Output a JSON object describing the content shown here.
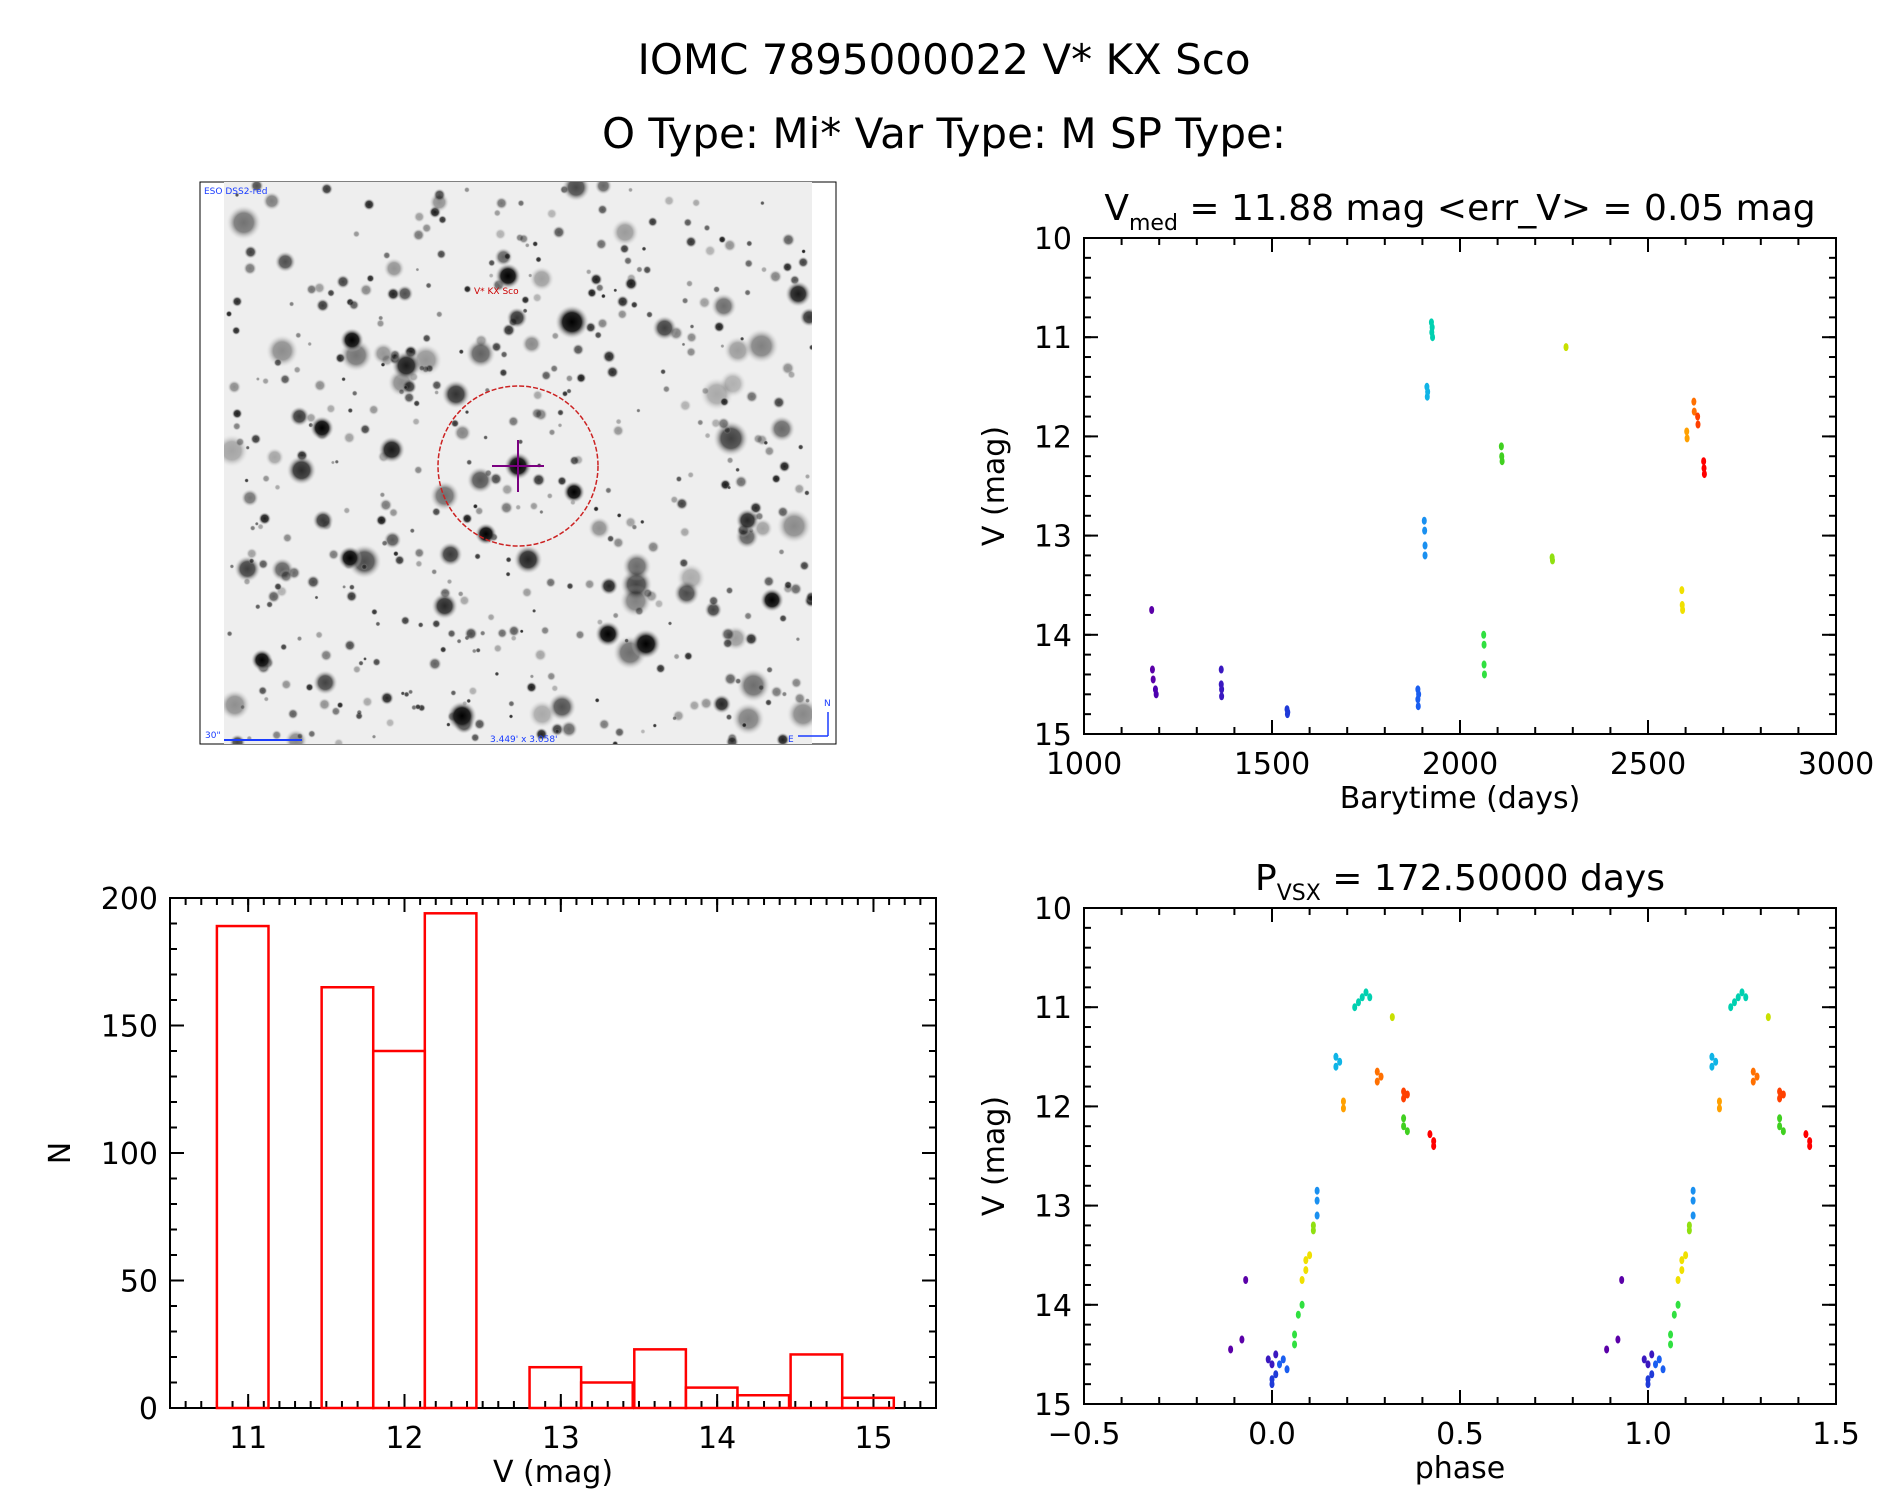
{
  "header": {
    "title_line1": "IOMC 7895000022   V* KX Sco",
    "title_line2": "O Type: Mi*  Var Type: M  SP Type:"
  },
  "sky_image": {
    "survey_label": "ESO DSS2-red",
    "target_label": "V* KX Sco",
    "scale_label": "30\"",
    "fov_label": "3.449' x 3.058'",
    "north_label": "N",
    "east_label": "E"
  },
  "colors": {
    "histogram": "#ff0000",
    "marker_circle": "#cc2222",
    "crosshair": "#7a0080"
  },
  "chart_data": [
    {
      "type": "scatter",
      "id": "light_curve",
      "title": "V_med = 11.88 mag <err_V> = 0.05 mag",
      "title_parts": {
        "prefix": "V",
        "sub": "med",
        "rest": " = 11.88 mag <err_V> = 0.05 mag"
      },
      "xlabel": "Barytime (days)",
      "ylabel": "V (mag)",
      "xlim": [
        1000,
        3000
      ],
      "ylim": [
        15,
        10
      ],
      "xticks": [
        1000,
        1500,
        2000,
        2500,
        3000
      ],
      "yticks": [
        10,
        11,
        12,
        13,
        14,
        15
      ],
      "color_scale": "rainbow by barytime",
      "points": [
        {
          "x": 1180,
          "y": 13.75,
          "c": "#5a00a8"
        },
        {
          "x": 1182,
          "y": 14.35,
          "c": "#5a00a8"
        },
        {
          "x": 1184,
          "y": 14.45,
          "c": "#5a00a8"
        },
        {
          "x": 1190,
          "y": 14.55,
          "c": "#4d00b0"
        },
        {
          "x": 1192,
          "y": 14.6,
          "c": "#4d00b0"
        },
        {
          "x": 1365,
          "y": 14.35,
          "c": "#3a18c0"
        },
        {
          "x": 1365,
          "y": 14.5,
          "c": "#3a18c0"
        },
        {
          "x": 1366,
          "y": 14.55,
          "c": "#3a18c0"
        },
        {
          "x": 1366,
          "y": 14.62,
          "c": "#3a18c0"
        },
        {
          "x": 1540,
          "y": 14.75,
          "c": "#1f3ad8"
        },
        {
          "x": 1541,
          "y": 14.8,
          "c": "#1f3ad8"
        },
        {
          "x": 1542,
          "y": 14.78,
          "c": "#1f3ad8"
        },
        {
          "x": 1888,
          "y": 14.55,
          "c": "#1a5ef0"
        },
        {
          "x": 1888,
          "y": 14.65,
          "c": "#1a5ef0"
        },
        {
          "x": 1889,
          "y": 14.72,
          "c": "#1a5ef0"
        },
        {
          "x": 1890,
          "y": 14.6,
          "c": "#1a5ef0"
        },
        {
          "x": 1905,
          "y": 12.85,
          "c": "#1a90f0"
        },
        {
          "x": 1906,
          "y": 12.95,
          "c": "#1a90f0"
        },
        {
          "x": 1907,
          "y": 13.1,
          "c": "#1a90f0"
        },
        {
          "x": 1907,
          "y": 13.2,
          "c": "#1a90f0"
        },
        {
          "x": 1912,
          "y": 11.5,
          "c": "#10b4e6"
        },
        {
          "x": 1913,
          "y": 11.6,
          "c": "#10b4e6"
        },
        {
          "x": 1914,
          "y": 11.55,
          "c": "#10b4e6"
        },
        {
          "x": 1924,
          "y": 10.85,
          "c": "#00d0b0"
        },
        {
          "x": 1925,
          "y": 10.95,
          "c": "#00d0b0"
        },
        {
          "x": 1926,
          "y": 10.9,
          "c": "#00d0b0"
        },
        {
          "x": 1927,
          "y": 11.0,
          "c": "#00d0b0"
        },
        {
          "x": 2063,
          "y": 14.0,
          "c": "#30e040"
        },
        {
          "x": 2064,
          "y": 14.1,
          "c": "#30e040"
        },
        {
          "x": 2064,
          "y": 14.3,
          "c": "#30e040"
        },
        {
          "x": 2065,
          "y": 14.4,
          "c": "#30e040"
        },
        {
          "x": 2110,
          "y": 12.1,
          "c": "#40d020"
        },
        {
          "x": 2111,
          "y": 12.2,
          "c": "#40d020"
        },
        {
          "x": 2112,
          "y": 12.25,
          "c": "#40d020"
        },
        {
          "x": 2245,
          "y": 13.22,
          "c": "#90e010"
        },
        {
          "x": 2246,
          "y": 13.25,
          "c": "#90e010"
        },
        {
          "x": 2282,
          "y": 11.1,
          "c": "#c8e000"
        },
        {
          "x": 2590,
          "y": 13.55,
          "c": "#f0e000"
        },
        {
          "x": 2591,
          "y": 13.7,
          "c": "#f0e000"
        },
        {
          "x": 2592,
          "y": 13.75,
          "c": "#f0e000"
        },
        {
          "x": 2603,
          "y": 11.95,
          "c": "#ffa000"
        },
        {
          "x": 2604,
          "y": 12.02,
          "c": "#ffa000"
        },
        {
          "x": 2622,
          "y": 11.65,
          "c": "#ff7000"
        },
        {
          "x": 2623,
          "y": 11.75,
          "c": "#ff7000"
        },
        {
          "x": 2632,
          "y": 11.8,
          "c": "#ff4000"
        },
        {
          "x": 2633,
          "y": 11.88,
          "c": "#ff4000"
        },
        {
          "x": 2648,
          "y": 12.25,
          "c": "#ff0000"
        },
        {
          "x": 2649,
          "y": 12.32,
          "c": "#ff0000"
        },
        {
          "x": 2650,
          "y": 12.38,
          "c": "#ff0000"
        }
      ]
    },
    {
      "type": "bar",
      "id": "histogram",
      "title": "",
      "xlabel": "V (mag)",
      "ylabel": "N",
      "xlim": [
        10.5,
        15.4
      ],
      "ylim": [
        0,
        200
      ],
      "xticks": [
        11,
        12,
        13,
        14,
        15
      ],
      "yticks": [
        0,
        50,
        100,
        150,
        200
      ],
      "bin_width": 0.33,
      "bins": [
        {
          "left": 10.8,
          "value": 189
        },
        {
          "left": 11.13,
          "value": 0
        },
        {
          "left": 11.47,
          "value": 165
        },
        {
          "left": 11.8,
          "value": 140
        },
        {
          "left": 12.13,
          "value": 194
        },
        {
          "left": 12.47,
          "value": 0
        },
        {
          "left": 12.8,
          "value": 16
        },
        {
          "left": 13.13,
          "value": 10
        },
        {
          "left": 13.47,
          "value": 23
        },
        {
          "left": 13.8,
          "value": 8
        },
        {
          "left": 14.13,
          "value": 5
        },
        {
          "left": 14.47,
          "value": 21
        },
        {
          "left": 14.8,
          "value": 4
        }
      ]
    },
    {
      "type": "scatter",
      "id": "phase_curve",
      "title": "P_vsx = 172.50000 days",
      "title_parts": {
        "prefix": "P",
        "sub": "VSX",
        "rest": " = 172.50000 days"
      },
      "xlabel": "phase",
      "ylabel": "V (mag)",
      "xlim": [
        -0.5,
        1.5
      ],
      "ylim": [
        15,
        10
      ],
      "xticks": [
        -0.5,
        0.0,
        0.5,
        1.0,
        1.5
      ],
      "xtick_labels": [
        "−0.5",
        "0.0",
        "0.5",
        "1.0",
        "1.5"
      ],
      "yticks": [
        10,
        11,
        12,
        13,
        14,
        15
      ],
      "phase_repeat": 1.0,
      "points": [
        {
          "x": -0.11,
          "y": 14.45,
          "c": "#5a00a8"
        },
        {
          "x": -0.08,
          "y": 14.35,
          "c": "#5a00a8"
        },
        {
          "x": -0.07,
          "y": 13.75,
          "c": "#5a00a8"
        },
        {
          "x": -0.01,
          "y": 14.55,
          "c": "#3a18c0"
        },
        {
          "x": 0.0,
          "y": 14.6,
          "c": "#3a18c0"
        },
        {
          "x": 0.01,
          "y": 14.5,
          "c": "#3a18c0"
        },
        {
          "x": 0.0,
          "y": 14.75,
          "c": "#1f3ad8"
        },
        {
          "x": 0.0,
          "y": 14.8,
          "c": "#1f3ad8"
        },
        {
          "x": 0.01,
          "y": 14.7,
          "c": "#1f3ad8"
        },
        {
          "x": 0.02,
          "y": 14.6,
          "c": "#1a5ef0"
        },
        {
          "x": 0.03,
          "y": 14.55,
          "c": "#1a5ef0"
        },
        {
          "x": 0.04,
          "y": 14.65,
          "c": "#1a5ef0"
        },
        {
          "x": 0.06,
          "y": 14.4,
          "c": "#30e040"
        },
        {
          "x": 0.06,
          "y": 14.3,
          "c": "#30e040"
        },
        {
          "x": 0.07,
          "y": 14.1,
          "c": "#30e040"
        },
        {
          "x": 0.08,
          "y": 14.0,
          "c": "#30e040"
        },
        {
          "x": 0.08,
          "y": 13.75,
          "c": "#f0e000"
        },
        {
          "x": 0.09,
          "y": 13.65,
          "c": "#f0e000"
        },
        {
          "x": 0.09,
          "y": 13.55,
          "c": "#f0e000"
        },
        {
          "x": 0.1,
          "y": 13.5,
          "c": "#f0e000"
        },
        {
          "x": 0.11,
          "y": 13.25,
          "c": "#90e010"
        },
        {
          "x": 0.11,
          "y": 13.2,
          "c": "#90e010"
        },
        {
          "x": 0.12,
          "y": 13.1,
          "c": "#1a90f0"
        },
        {
          "x": 0.12,
          "y": 12.95,
          "c": "#1a90f0"
        },
        {
          "x": 0.12,
          "y": 12.85,
          "c": "#1a90f0"
        },
        {
          "x": 0.17,
          "y": 11.5,
          "c": "#10b4e6"
        },
        {
          "x": 0.17,
          "y": 11.6,
          "c": "#10b4e6"
        },
        {
          "x": 0.18,
          "y": 11.55,
          "c": "#10b4e6"
        },
        {
          "x": 0.19,
          "y": 11.95,
          "c": "#ffa000"
        },
        {
          "x": 0.19,
          "y": 12.02,
          "c": "#ffa000"
        },
        {
          "x": 0.22,
          "y": 11.0,
          "c": "#00d0b0"
        },
        {
          "x": 0.23,
          "y": 10.95,
          "c": "#00d0b0"
        },
        {
          "x": 0.24,
          "y": 10.9,
          "c": "#00d0b0"
        },
        {
          "x": 0.25,
          "y": 10.85,
          "c": "#00d0b0"
        },
        {
          "x": 0.26,
          "y": 10.9,
          "c": "#00d0b0"
        },
        {
          "x": 0.28,
          "y": 11.65,
          "c": "#ff7000"
        },
        {
          "x": 0.28,
          "y": 11.75,
          "c": "#ff7000"
        },
        {
          "x": 0.29,
          "y": 11.7,
          "c": "#ff7000"
        },
        {
          "x": 0.32,
          "y": 11.1,
          "c": "#c8e000"
        },
        {
          "x": 0.35,
          "y": 11.85,
          "c": "#ff4000"
        },
        {
          "x": 0.35,
          "y": 11.92,
          "c": "#ff4000"
        },
        {
          "x": 0.36,
          "y": 11.88,
          "c": "#ff4000"
        },
        {
          "x": 0.35,
          "y": 12.12,
          "c": "#40d020"
        },
        {
          "x": 0.35,
          "y": 12.2,
          "c": "#40d020"
        },
        {
          "x": 0.36,
          "y": 12.25,
          "c": "#40d020"
        },
        {
          "x": 0.42,
          "y": 12.28,
          "c": "#ff0000"
        },
        {
          "x": 0.43,
          "y": 12.35,
          "c": "#ff0000"
        },
        {
          "x": 0.43,
          "y": 12.4,
          "c": "#ff0000"
        }
      ]
    }
  ]
}
